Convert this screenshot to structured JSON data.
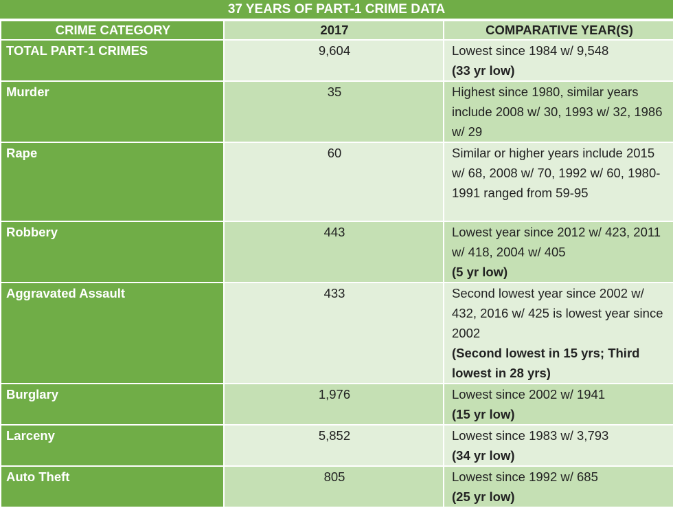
{
  "title": "37 YEARS OF PART-1 CRIME DATA",
  "headers": [
    "CRIME CATEGORY",
    "2017",
    "COMPARATIVE YEAR(S)"
  ],
  "rows": [
    {
      "category": "TOTAL PART-1 CRIMES",
      "value": "9,604",
      "comparative": "Lowest since 1984 w/ 9,548",
      "note": "(33 yr low)"
    },
    {
      "category": "Murder",
      "value": "35",
      "comparative": "Highest since 1980, similar years include 2008 w/ 30, 1993 w/ 32, 1986 w/ 29",
      "note": ""
    },
    {
      "category": "Rape",
      "value": "60",
      "comparative": "Similar or higher years include 2015 w/ 68, 2008 w/ 70, 1992 w/ 60, 1980-1991 ranged from 59-95",
      "note": ""
    },
    {
      "category": "Robbery",
      "value": "443",
      "comparative": "Lowest year since 2012 w/ 423, 2011 w/ 418, 2004 w/ 405",
      "note": "(5 yr low)"
    },
    {
      "category": "Aggravated Assault",
      "value": "433",
      "comparative": "Second lowest year since 2002 w/ 432, 2016 w/ 425 is lowest year since 2002",
      "note": "(Second lowest in 15 yrs; Third lowest in 28 yrs)"
    },
    {
      "category": "Burglary",
      "value": "1,976",
      "comparative": "Lowest since 2002 w/ 1941",
      "note": "(15 yr low)"
    },
    {
      "category": "Larceny",
      "value": "5,852",
      "comparative": "Lowest since 1983 w/ 3,793",
      "note": "(34 yr low)"
    },
    {
      "category": "Auto Theft",
      "value": "805",
      "comparative": "Lowest since 1992 w/ 685",
      "note": "(25 yr low)"
    }
  ]
}
